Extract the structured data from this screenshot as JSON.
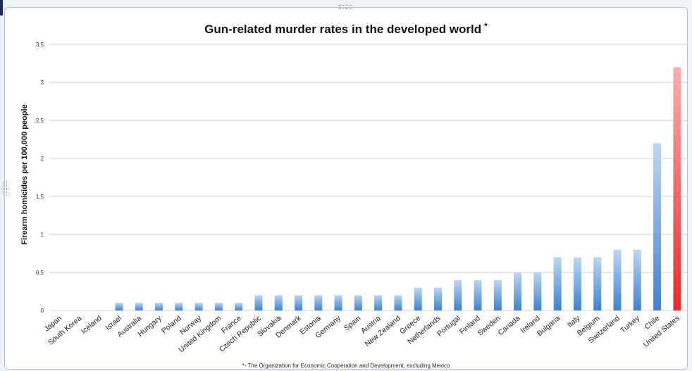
{
  "chart_data": {
    "type": "bar",
    "title": "Gun-related murder rates in the developed world",
    "title_marker": "*",
    "ylabel": "Firearm homicides per 100,000 people",
    "xlabel": "",
    "footnote": "*- The Organization for Economic Cooperation and Development, excluding Mexico",
    "ylim": [
      0,
      3.5
    ],
    "yticks": [
      "0",
      "0.5",
      "1",
      "1.5",
      "2",
      "2.5",
      "3",
      "3.5"
    ],
    "grid": true,
    "categories": [
      "Japan",
      "South Korea",
      "Iceland",
      "Israel",
      "Australia",
      "Hungary",
      "Poland",
      "Norway",
      "United Kingdom",
      "France",
      "Czech Republic",
      "Slovakia",
      "Denmark",
      "Estonia",
      "Germany",
      "Spain",
      "Austria",
      "New Zealand",
      "Greece",
      "Netherlands",
      "Portugal",
      "Finland",
      "Sweden",
      "Canada",
      "Ireland",
      "Bulgaria",
      "Italy",
      "Belgium",
      "Switzerland",
      "Turkey",
      "Chile",
      "United States"
    ],
    "values": [
      0,
      0,
      0,
      0.1,
      0.1,
      0.1,
      0.1,
      0.1,
      0.1,
      0.1,
      0.2,
      0.2,
      0.2,
      0.2,
      0.2,
      0.2,
      0.2,
      0.2,
      0.3,
      0.3,
      0.4,
      0.4,
      0.4,
      0.5,
      0.5,
      0.7,
      0.7,
      0.7,
      0.8,
      0.8,
      2.2,
      3.2
    ],
    "colors": {
      "bar_top": "#bcd6f2",
      "bar_bottom": "#3d82cf",
      "highlight_top": "#f6b0ae",
      "highlight_bottom": "#e82a2a",
      "grid": "#d0d0d0"
    },
    "highlight_category": "United States"
  }
}
